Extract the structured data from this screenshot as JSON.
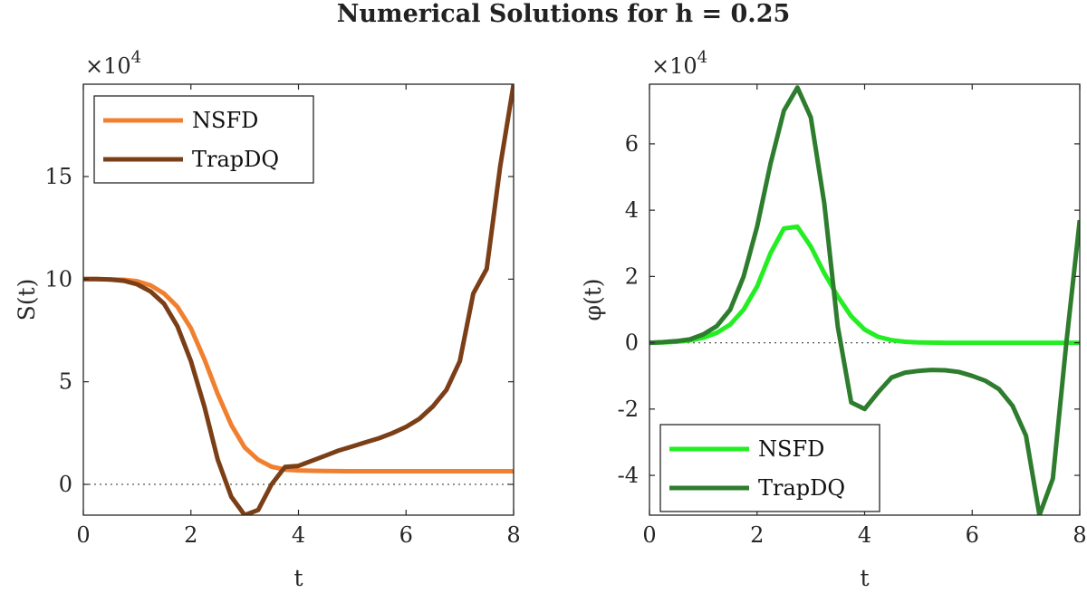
{
  "figure": {
    "title": "Numerical Solutions for h = 0.25"
  },
  "chart_data": [
    {
      "type": "line",
      "xlabel": "t",
      "ylabel": "S(t)",
      "y_multiplier": "×10",
      "y_multiplier_exp": "4",
      "xlim": [
        0,
        8
      ],
      "ylim": [
        -15000,
        195000
      ],
      "xticks": [
        0,
        2,
        4,
        6,
        8
      ],
      "yticks": [
        0,
        50000,
        100000,
        150000
      ],
      "ytick_labels": [
        "0",
        "5",
        "10",
        "15"
      ],
      "xtick_labels": [
        "0",
        "2",
        "4",
        "6",
        "8"
      ],
      "zero_line": true,
      "grid": false,
      "legend": {
        "position": "top-left"
      },
      "series": [
        {
          "name": "NSFD",
          "color": "#F08030",
          "x": [
            0,
            0.25,
            0.5,
            0.75,
            1,
            1.25,
            1.5,
            1.75,
            2,
            2.25,
            2.5,
            2.75,
            3,
            3.25,
            3.5,
            3.75,
            4,
            4.25,
            4.5,
            4.75,
            5,
            5.5,
            6,
            6.5,
            7,
            7.5,
            8
          ],
          "y": [
            100000,
            100000,
            99900,
            99700,
            99000,
            97000,
            93000,
            86500,
            76000,
            61000,
            44000,
            29000,
            18000,
            12000,
            8600,
            7200,
            6800,
            6600,
            6500,
            6450,
            6400,
            6400,
            6400,
            6400,
            6400,
            6400,
            6400
          ]
        },
        {
          "name": "TrapDQ",
          "color": "#7B3F18",
          "x": [
            0,
            0.25,
            0.5,
            0.75,
            1,
            1.25,
            1.5,
            1.75,
            2,
            2.25,
            2.5,
            2.75,
            3,
            3.25,
            3.5,
            3.75,
            4,
            4.25,
            4.5,
            4.75,
            5,
            5.25,
            5.5,
            5.75,
            6,
            6.25,
            6.5,
            6.75,
            7,
            7.25,
            7.5,
            7.75,
            8
          ],
          "y": [
            100000,
            100000,
            99800,
            99200,
            97500,
            94000,
            88000,
            77000,
            60000,
            38000,
            12000,
            -6000,
            -15000,
            -12500,
            0,
            8500,
            9000,
            11500,
            14000,
            16500,
            18500,
            20500,
            22500,
            25000,
            28000,
            32000,
            38000,
            46000,
            60000,
            93000,
            105000,
            155000,
            195000
          ]
        }
      ]
    },
    {
      "type": "line",
      "xlabel": "t",
      "ylabel": "φ(t)",
      "y_multiplier": "×10",
      "y_multiplier_exp": "4",
      "xlim": [
        0,
        8
      ],
      "ylim": [
        -52000,
        78000
      ],
      "xticks": [
        0,
        2,
        4,
        6,
        8
      ],
      "yticks": [
        -40000,
        -20000,
        0,
        20000,
        40000,
        60000
      ],
      "ytick_labels": [
        "-4",
        "-2",
        "0",
        "2",
        "4",
        "6"
      ],
      "xtick_labels": [
        "0",
        "2",
        "4",
        "6",
        "8"
      ],
      "zero_line": true,
      "grid": false,
      "legend": {
        "position": "bottom-left"
      },
      "series": [
        {
          "name": "NSFD",
          "color": "#22EE22",
          "x": [
            0,
            0.25,
            0.5,
            0.75,
            1,
            1.25,
            1.5,
            1.75,
            2,
            2.25,
            2.5,
            2.75,
            3,
            3.25,
            3.5,
            3.75,
            4,
            4.25,
            4.5,
            4.75,
            5,
            5.5,
            6,
            6.5,
            7,
            7.5,
            8
          ],
          "y": [
            0,
            100,
            300,
            700,
            1500,
            3000,
            5500,
            10000,
            17000,
            27000,
            34500,
            35000,
            29000,
            21000,
            14000,
            8000,
            4000,
            1800,
            800,
            300,
            100,
            0,
            0,
            0,
            0,
            0,
            0
          ]
        },
        {
          "name": "TrapDQ",
          "color": "#2E7D2E",
          "x": [
            0,
            0.25,
            0.5,
            0.75,
            1,
            1.25,
            1.5,
            1.75,
            2,
            2.25,
            2.5,
            2.75,
            3,
            3.25,
            3.5,
            3.75,
            4,
            4.25,
            4.5,
            4.75,
            5,
            5.25,
            5.5,
            5.75,
            6,
            6.25,
            6.5,
            6.75,
            7,
            7.25,
            7.5,
            7.75,
            8
          ],
          "y": [
            0,
            200,
            500,
            1000,
            2500,
            5000,
            10000,
            20000,
            35000,
            54000,
            70000,
            77000,
            68000,
            42000,
            5000,
            -18000,
            -20000,
            -15000,
            -10500,
            -9000,
            -8500,
            -8200,
            -8300,
            -8800,
            -10000,
            -11500,
            -14000,
            -19000,
            -28000,
            -52000,
            -41000,
            0,
            37000
          ]
        }
      ]
    }
  ]
}
